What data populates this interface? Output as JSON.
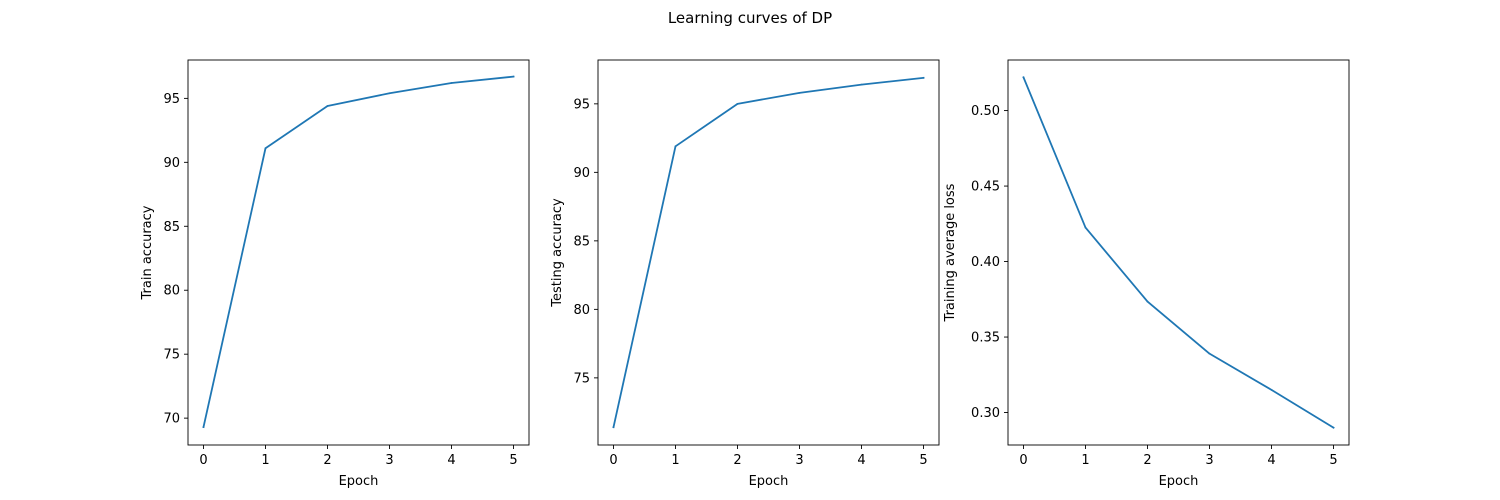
{
  "figure": {
    "title": "Learning curves of DP"
  },
  "style": {
    "line_color": "#1f77b4",
    "axes_color": "#000000",
    "background": "#ffffff"
  },
  "chart_data": [
    {
      "type": "line",
      "title": "",
      "xlabel": "Epoch",
      "ylabel": "Train accuracy",
      "grid": false,
      "x": [
        0,
        1,
        2,
        3,
        4,
        5
      ],
      "xticks": [
        0,
        1,
        2,
        3,
        4,
        5
      ],
      "xlim": [
        -0.25,
        5.25
      ],
      "yticks": [
        70,
        75,
        80,
        85,
        90,
        95
      ],
      "ylim": [
        67.9,
        98.0
      ],
      "series": [
        {
          "values": [
            69.3,
            91.1,
            94.4,
            95.4,
            96.2,
            96.7
          ]
        }
      ]
    },
    {
      "type": "line",
      "title": "",
      "xlabel": "Epoch",
      "ylabel": "Testing accuracy",
      "grid": false,
      "x": [
        0,
        1,
        2,
        3,
        4,
        5
      ],
      "xticks": [
        0,
        1,
        2,
        3,
        4,
        5
      ],
      "xlim": [
        -0.25,
        5.25
      ],
      "yticks": [
        75,
        80,
        85,
        90,
        95
      ],
      "ylim": [
        70.1,
        98.2
      ],
      "series": [
        {
          "values": [
            71.4,
            91.9,
            95.0,
            95.8,
            96.4,
            96.9
          ]
        }
      ]
    },
    {
      "type": "line",
      "title": "",
      "xlabel": "Epoch",
      "ylabel": "Training average loss",
      "grid": false,
      "x": [
        0,
        1,
        2,
        3,
        4,
        5
      ],
      "xticks": [
        0,
        1,
        2,
        3,
        4,
        5
      ],
      "xlim": [
        -0.25,
        5.25
      ],
      "yticks": [
        "0.30",
        "0.35",
        "0.40",
        "0.45",
        "0.50"
      ],
      "ylim": [
        0.2785,
        0.5335
      ],
      "series": [
        {
          "values": [
            0.522,
            0.4225,
            0.3735,
            0.339,
            0.315,
            0.29
          ]
        }
      ]
    }
  ]
}
